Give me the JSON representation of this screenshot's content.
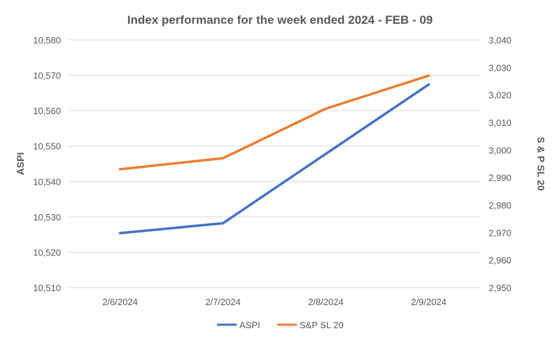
{
  "chart_data": {
    "type": "line",
    "title": "Index performance for the week ended 2024  - FEB - 09",
    "categories": [
      "2/6/2024",
      "2/7/2024",
      "2/8/2024",
      "2/9/2024"
    ],
    "series": [
      {
        "name": "ASPI",
        "axis": "left",
        "color": "#4472c4",
        "values": [
          10525.4,
          10528.2,
          10547.8,
          10567.4
        ]
      },
      {
        "name": "S&P SL 20",
        "axis": "right",
        "color": "#ed7d31",
        "values": [
          2993,
          2997,
          3015,
          3027
        ]
      }
    ],
    "ylabel": "ASPI",
    "ylabel_right": "S & P SL 20",
    "ylim": [
      10510,
      10580
    ],
    "ylim_right": [
      2950,
      3040
    ],
    "yticks": [
      "10,510",
      "10,520",
      "10,530",
      "10,540",
      "10,550",
      "10,560",
      "10,570",
      "10,580"
    ],
    "yticks_right": [
      "2,950",
      "2,960",
      "2,970",
      "2,980",
      "2,990",
      "3,000",
      "3,010",
      "3,020",
      "3,030",
      "3,040"
    ],
    "grid": true,
    "legend_position": "bottom"
  }
}
